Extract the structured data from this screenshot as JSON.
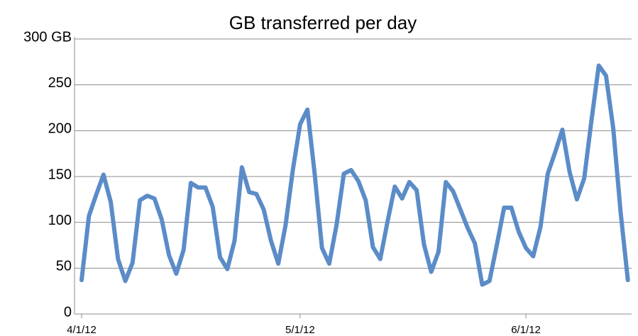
{
  "chart_data": {
    "type": "line",
    "title": "GB transferred per day",
    "x": [
      "4/1/12",
      "4/2/12",
      "4/3/12",
      "4/4/12",
      "4/5/12",
      "4/6/12",
      "4/7/12",
      "4/8/12",
      "4/9/12",
      "4/10/12",
      "4/11/12",
      "4/12/12",
      "4/13/12",
      "4/14/12",
      "4/15/12",
      "4/16/12",
      "4/17/12",
      "4/18/12",
      "4/19/12",
      "4/20/12",
      "4/21/12",
      "4/22/12",
      "4/23/12",
      "4/24/12",
      "4/25/12",
      "4/26/12",
      "4/27/12",
      "4/28/12",
      "4/29/12",
      "4/30/12",
      "5/1/12",
      "5/2/12",
      "5/3/12",
      "5/4/12",
      "5/5/12",
      "5/6/12",
      "5/7/12",
      "5/8/12",
      "5/9/12",
      "5/10/12",
      "5/11/12",
      "5/12/12",
      "5/13/12",
      "5/14/12",
      "5/15/12",
      "5/16/12",
      "5/17/12",
      "5/18/12",
      "5/19/12",
      "5/20/12",
      "5/21/12",
      "5/22/12",
      "5/23/12",
      "5/24/12",
      "5/25/12",
      "5/26/12",
      "5/27/12",
      "5/28/12",
      "5/29/12",
      "5/30/12",
      "5/31/12",
      "6/1/12",
      "6/2/12",
      "6/3/12",
      "6/4/12",
      "6/5/12",
      "6/6/12",
      "6/7/12",
      "6/8/12",
      "6/9/12",
      "6/10/12",
      "6/11/12",
      "6/12/12",
      "6/13/12",
      "6/14/12",
      "6/15/12"
    ],
    "series": [
      {
        "name": "GB",
        "color": "#5b8cc8",
        "values": [
          37,
          107,
          130,
          152,
          122,
          60,
          36,
          56,
          124,
          129,
          126,
          103,
          64,
          44,
          70,
          143,
          138,
          138,
          117,
          62,
          49,
          80,
          160,
          133,
          131,
          114,
          80,
          55,
          97,
          157,
          207,
          223,
          153,
          72,
          55,
          97,
          153,
          157,
          145,
          124,
          73,
          60,
          101,
          139,
          126,
          144,
          135,
          76,
          46,
          68,
          144,
          134,
          114,
          94,
          77,
          32,
          36,
          75,
          116,
          116,
          90,
          72,
          63,
          95,
          153,
          176,
          201,
          155,
          125,
          148,
          211,
          271,
          260,
          202,
          111,
          37
        ]
      }
    ],
    "xlim": [
      "4/1/12",
      "6/16/12"
    ],
    "xticks": [
      "4/1/12",
      "5/1/12",
      "6/1/12"
    ],
    "ylim": [
      0,
      300
    ],
    "yticks": [
      0,
      50,
      100,
      150,
      200,
      250,
      {
        "value": 300,
        "label": "300 GB"
      }
    ],
    "grid": true
  }
}
